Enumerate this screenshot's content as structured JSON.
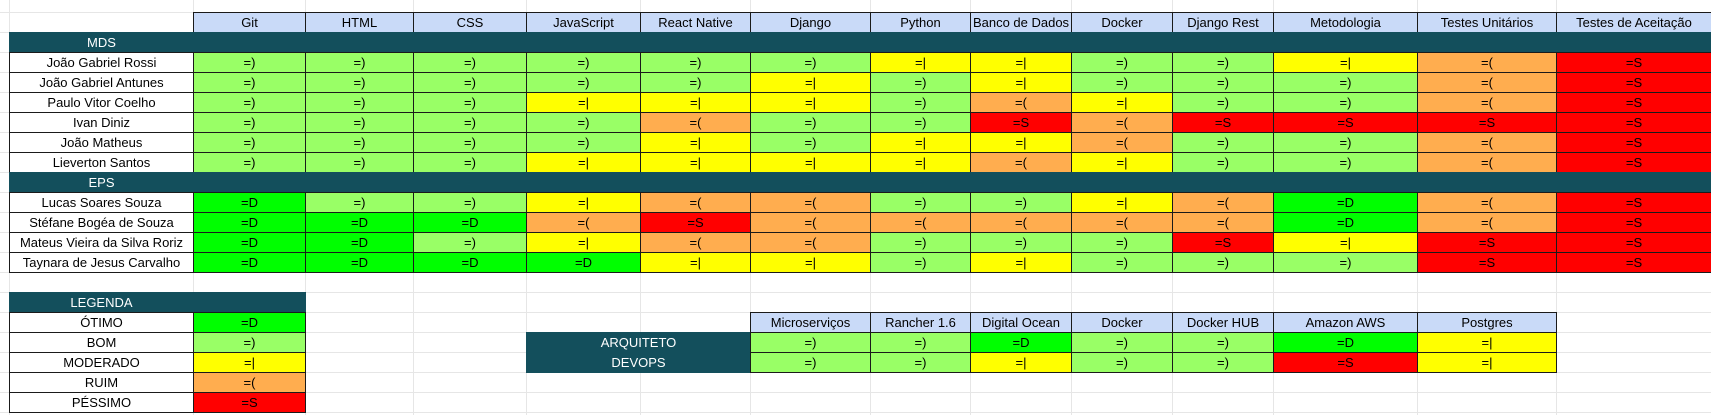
{
  "ratings": {
    "otimo": {
      "symbol": "=D",
      "color": "#00ff00"
    },
    "bom": {
      "symbol": "=)",
      "color": "#99ff66"
    },
    "moderado": {
      "symbol": "=|",
      "color": "#ffff00"
    },
    "ruim": {
      "symbol": "=(",
      "color": "#ffad4f"
    },
    "pessimo": {
      "symbol": "=S",
      "color": "#ff0000"
    }
  },
  "skills": [
    "Git",
    "HTML",
    "CSS",
    "JavaScript",
    "React Native",
    "Django",
    "Python",
    "Banco de Dados",
    "Docker",
    "Django Rest",
    "Metodologia",
    "Testes Unitários",
    "Testes de Aceitação"
  ],
  "groups": [
    {
      "label": "MDS",
      "members": [
        {
          "name": "João Gabriel Rossi",
          "ratings": [
            "bom",
            "bom",
            "bom",
            "bom",
            "bom",
            "bom",
            "moderado",
            "moderado",
            "bom",
            "bom",
            "moderado",
            "ruim",
            "pessimo"
          ]
        },
        {
          "name": "João Gabriel Antunes",
          "ratings": [
            "bom",
            "bom",
            "bom",
            "bom",
            "bom",
            "moderado",
            "bom",
            "moderado",
            "bom",
            "bom",
            "bom",
            "ruim",
            "pessimo"
          ]
        },
        {
          "name": "Paulo Vitor Coelho",
          "ratings": [
            "bom",
            "bom",
            "bom",
            "moderado",
            "moderado",
            "moderado",
            "bom",
            "ruim",
            "moderado",
            "bom",
            "bom",
            "ruim",
            "pessimo"
          ]
        },
        {
          "name": "Ivan Diniz",
          "ratings": [
            "bom",
            "bom",
            "bom",
            "bom",
            "ruim",
            "bom",
            "bom",
            "pessimo",
            "ruim",
            "pessimo",
            "pessimo",
            "pessimo",
            "pessimo"
          ]
        },
        {
          "name": "João Matheus",
          "ratings": [
            "bom",
            "bom",
            "bom",
            "bom",
            "moderado",
            "bom",
            "moderado",
            "moderado",
            "ruim",
            "bom",
            "bom",
            "ruim",
            "pessimo"
          ]
        },
        {
          "name": "Lieverton Santos",
          "ratings": [
            "bom",
            "bom",
            "bom",
            "moderado",
            "moderado",
            "moderado",
            "moderado",
            "ruim",
            "moderado",
            "bom",
            "bom",
            "ruim",
            "pessimo"
          ]
        }
      ]
    },
    {
      "label": "EPS",
      "members": [
        {
          "name": "Lucas Soares Souza",
          "ratings": [
            "otimo",
            "bom",
            "bom",
            "moderado",
            "ruim",
            "ruim",
            "bom",
            "bom",
            "moderado",
            "ruim",
            "otimo",
            "ruim",
            "pessimo"
          ]
        },
        {
          "name": "Stéfane Bogéa de Souza",
          "ratings": [
            "otimo",
            "otimo",
            "otimo",
            "ruim",
            "pessimo",
            "ruim",
            "ruim",
            "ruim",
            "ruim",
            "ruim",
            "otimo",
            "ruim",
            "pessimo"
          ]
        },
        {
          "name": "Mateus Vieira da Silva Roriz",
          "ratings": [
            "otimo",
            "otimo",
            "bom",
            "moderado",
            "ruim",
            "ruim",
            "bom",
            "bom",
            "bom",
            "pessimo",
            "moderado",
            "pessimo",
            "pessimo"
          ]
        },
        {
          "name": "Taynara de Jesus Carvalho",
          "ratings": [
            "otimo",
            "otimo",
            "otimo",
            "otimo",
            "moderado",
            "moderado",
            "bom",
            "moderado",
            "bom",
            "bom",
            "bom",
            "pessimo",
            "pessimo"
          ]
        }
      ]
    }
  ],
  "legend": {
    "title": "LEGENDA",
    "items": [
      {
        "label": "ÓTIMO",
        "rating": "otimo"
      },
      {
        "label": "BOM",
        "rating": "bom"
      },
      {
        "label": "MODERADO",
        "rating": "moderado"
      },
      {
        "label": "RUIM",
        "rating": "ruim"
      },
      {
        "label": "PÉSSIMO",
        "rating": "pessimo"
      }
    ]
  },
  "infra": {
    "tools": [
      "Microserviços",
      "Rancher 1.6",
      "Digital Ocean",
      "Docker",
      "Docker HUB",
      "Amazon AWS",
      "Postgres"
    ],
    "roles": [
      {
        "label": "ARQUITETO",
        "ratings": [
          "bom",
          "bom",
          "otimo",
          "bom",
          "bom",
          "otimo",
          "moderado"
        ]
      },
      {
        "label": "DEVOPS",
        "ratings": [
          "bom",
          "bom",
          "moderado",
          "bom",
          "bom",
          "pessimo",
          "moderado"
        ]
      }
    ]
  }
}
